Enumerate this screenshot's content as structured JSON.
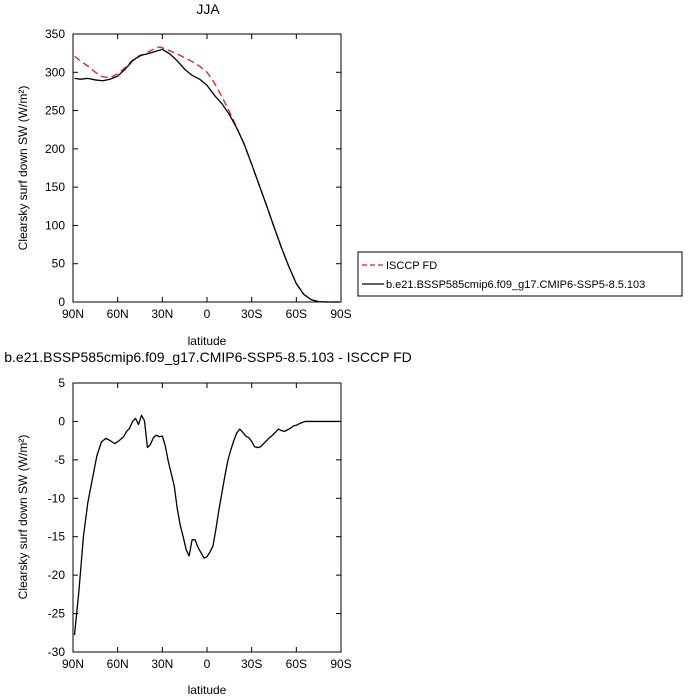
{
  "chart_data": [
    {
      "type": "line",
      "title": "JJA",
      "xlabel": "latitude",
      "ylabel": "Clearsky surf down SW (W/m²)",
      "xlim": [
        90,
        -90
      ],
      "ylim": [
        0,
        350
      ],
      "x_ticks": [
        90,
        60,
        30,
        0,
        -30,
        -60,
        -90
      ],
      "x_tick_labels": [
        "90N",
        "60N",
        "30N",
        "0",
        "30S",
        "60S",
        "90S"
      ],
      "y_ticks": [
        0,
        50,
        100,
        150,
        200,
        250,
        300,
        350
      ],
      "y_tick_labels": [
        "0",
        "50",
        "100",
        "150",
        "200",
        "250",
        "300",
        "350"
      ],
      "grid": false,
      "legend_position": "outside-right",
      "series": [
        {
          "name": "ISCCP FD",
          "color": "#e41a1c",
          "dash": "dashed",
          "x": [
            89,
            85,
            80,
            75,
            70,
            65,
            60,
            55,
            50,
            45,
            40,
            35,
            32,
            30,
            25,
            20,
            15,
            10,
            5,
            0,
            -5,
            -10,
            -15,
            -20,
            -25,
            -30,
            -35,
            -40,
            -45,
            -50,
            -55,
            -60,
            -65,
            -70,
            -75,
            -80,
            -85,
            -89
          ],
          "values": [
            321,
            315,
            308,
            300,
            294,
            293,
            298,
            306,
            316,
            321,
            326,
            331,
            333,
            332,
            328,
            324,
            319,
            314,
            308,
            300,
            286,
            268,
            249,
            228,
            206,
            180,
            153,
            126,
            98,
            71,
            46,
            24,
            10,
            3,
            0.5,
            0,
            0,
            0
          ]
        },
        {
          "name": "b.e21.BSSP585cmip6.f09_g17.CMIP6-SSP5-8.5.103",
          "color": "#000000",
          "dash": "solid",
          "x": [
            89,
            85,
            80,
            75,
            70,
            65,
            60,
            55,
            50,
            45,
            40,
            35,
            30,
            25,
            20,
            15,
            10,
            5,
            0,
            -5,
            -10,
            -15,
            -20,
            -25,
            -30,
            -35,
            -40,
            -45,
            -50,
            -55,
            -60,
            -65,
            -70,
            -75,
            -80,
            -85,
            -89
          ],
          "values": [
            292,
            291,
            292,
            290,
            289,
            291,
            295,
            304,
            315,
            322,
            324,
            327,
            330,
            324,
            315,
            304,
            296,
            291,
            283,
            270,
            259,
            245,
            227,
            206,
            180,
            153,
            126,
            98,
            71,
            46,
            24,
            10,
            3,
            0.5,
            0,
            0,
            0
          ]
        }
      ]
    },
    {
      "type": "line",
      "title": "b.e21.BSSP585cmip6.f09_g17.CMIP6-SSP5-8.5.103 - ISCCP FD",
      "xlabel": "latitude",
      "ylabel": "Clearsky surf down SW (W/m²)",
      "xlim": [
        90,
        -90
      ],
      "ylim": [
        -30,
        5
      ],
      "x_ticks": [
        90,
        60,
        30,
        0,
        -30,
        -60,
        -90
      ],
      "x_tick_labels": [
        "90N",
        "60N",
        "30N",
        "0",
        "30S",
        "60S",
        "90S"
      ],
      "y_ticks": [
        5,
        0,
        -5,
        -10,
        -15,
        -20,
        -25,
        -30
      ],
      "y_tick_labels": [
        "5",
        "0",
        "-5",
        "-10",
        "-15",
        "-20",
        "-25",
        "-30"
      ],
      "grid": false,
      "series": [
        {
          "color": "#000000",
          "dash": "solid",
          "x": [
            89,
            86,
            83,
            80,
            77,
            74,
            71,
            68,
            65,
            62,
            59,
            56,
            54,
            52,
            50,
            48,
            46,
            44,
            42,
            40,
            38,
            36,
            34,
            32,
            30,
            28,
            26,
            24,
            22,
            20,
            18,
            16,
            14,
            12,
            10,
            8,
            6,
            4,
            2,
            0,
            -2,
            -4,
            -6,
            -8,
            -10,
            -12,
            -14,
            -16,
            -18,
            -20,
            -22,
            -24,
            -26,
            -28,
            -30,
            -32,
            -34,
            -36,
            -38,
            -40,
            -42,
            -44,
            -46,
            -48,
            -50,
            -52,
            -54,
            -56,
            -58,
            -60,
            -63,
            -66,
            -69,
            -72,
            -75,
            -78,
            -81,
            -84,
            -87,
            -89
          ],
          "values": [
            -27.8,
            -22.0,
            -15.0,
            -10.5,
            -7.5,
            -4.5,
            -2.7,
            -2.2,
            -2.5,
            -2.9,
            -2.5,
            -2.0,
            -1.3,
            -0.9,
            0.0,
            0.4,
            -0.4,
            0.8,
            0.1,
            -3.4,
            -3.0,
            -2.1,
            -1.8,
            -2.0,
            -1.9,
            -3.2,
            -5.2,
            -6.8,
            -8.4,
            -11.3,
            -13.5,
            -15.0,
            -16.7,
            -17.5,
            -15.4,
            -15.4,
            -16.4,
            -17.1,
            -17.8,
            -17.6,
            -17.0,
            -16.2,
            -14.0,
            -11.5,
            -9.3,
            -7.1,
            -5.1,
            -3.7,
            -2.5,
            -1.5,
            -1.0,
            -1.4,
            -1.9,
            -2.1,
            -2.6,
            -3.3,
            -3.4,
            -3.3,
            -2.9,
            -2.5,
            -2.1,
            -1.8,
            -1.4,
            -1.0,
            -1.2,
            -1.3,
            -1.1,
            -0.9,
            -0.6,
            -0.5,
            -0.2,
            0.0,
            0.0,
            0.0,
            0.0,
            0.0,
            0.0,
            0.0,
            0.0,
            0.0
          ]
        }
      ]
    }
  ]
}
